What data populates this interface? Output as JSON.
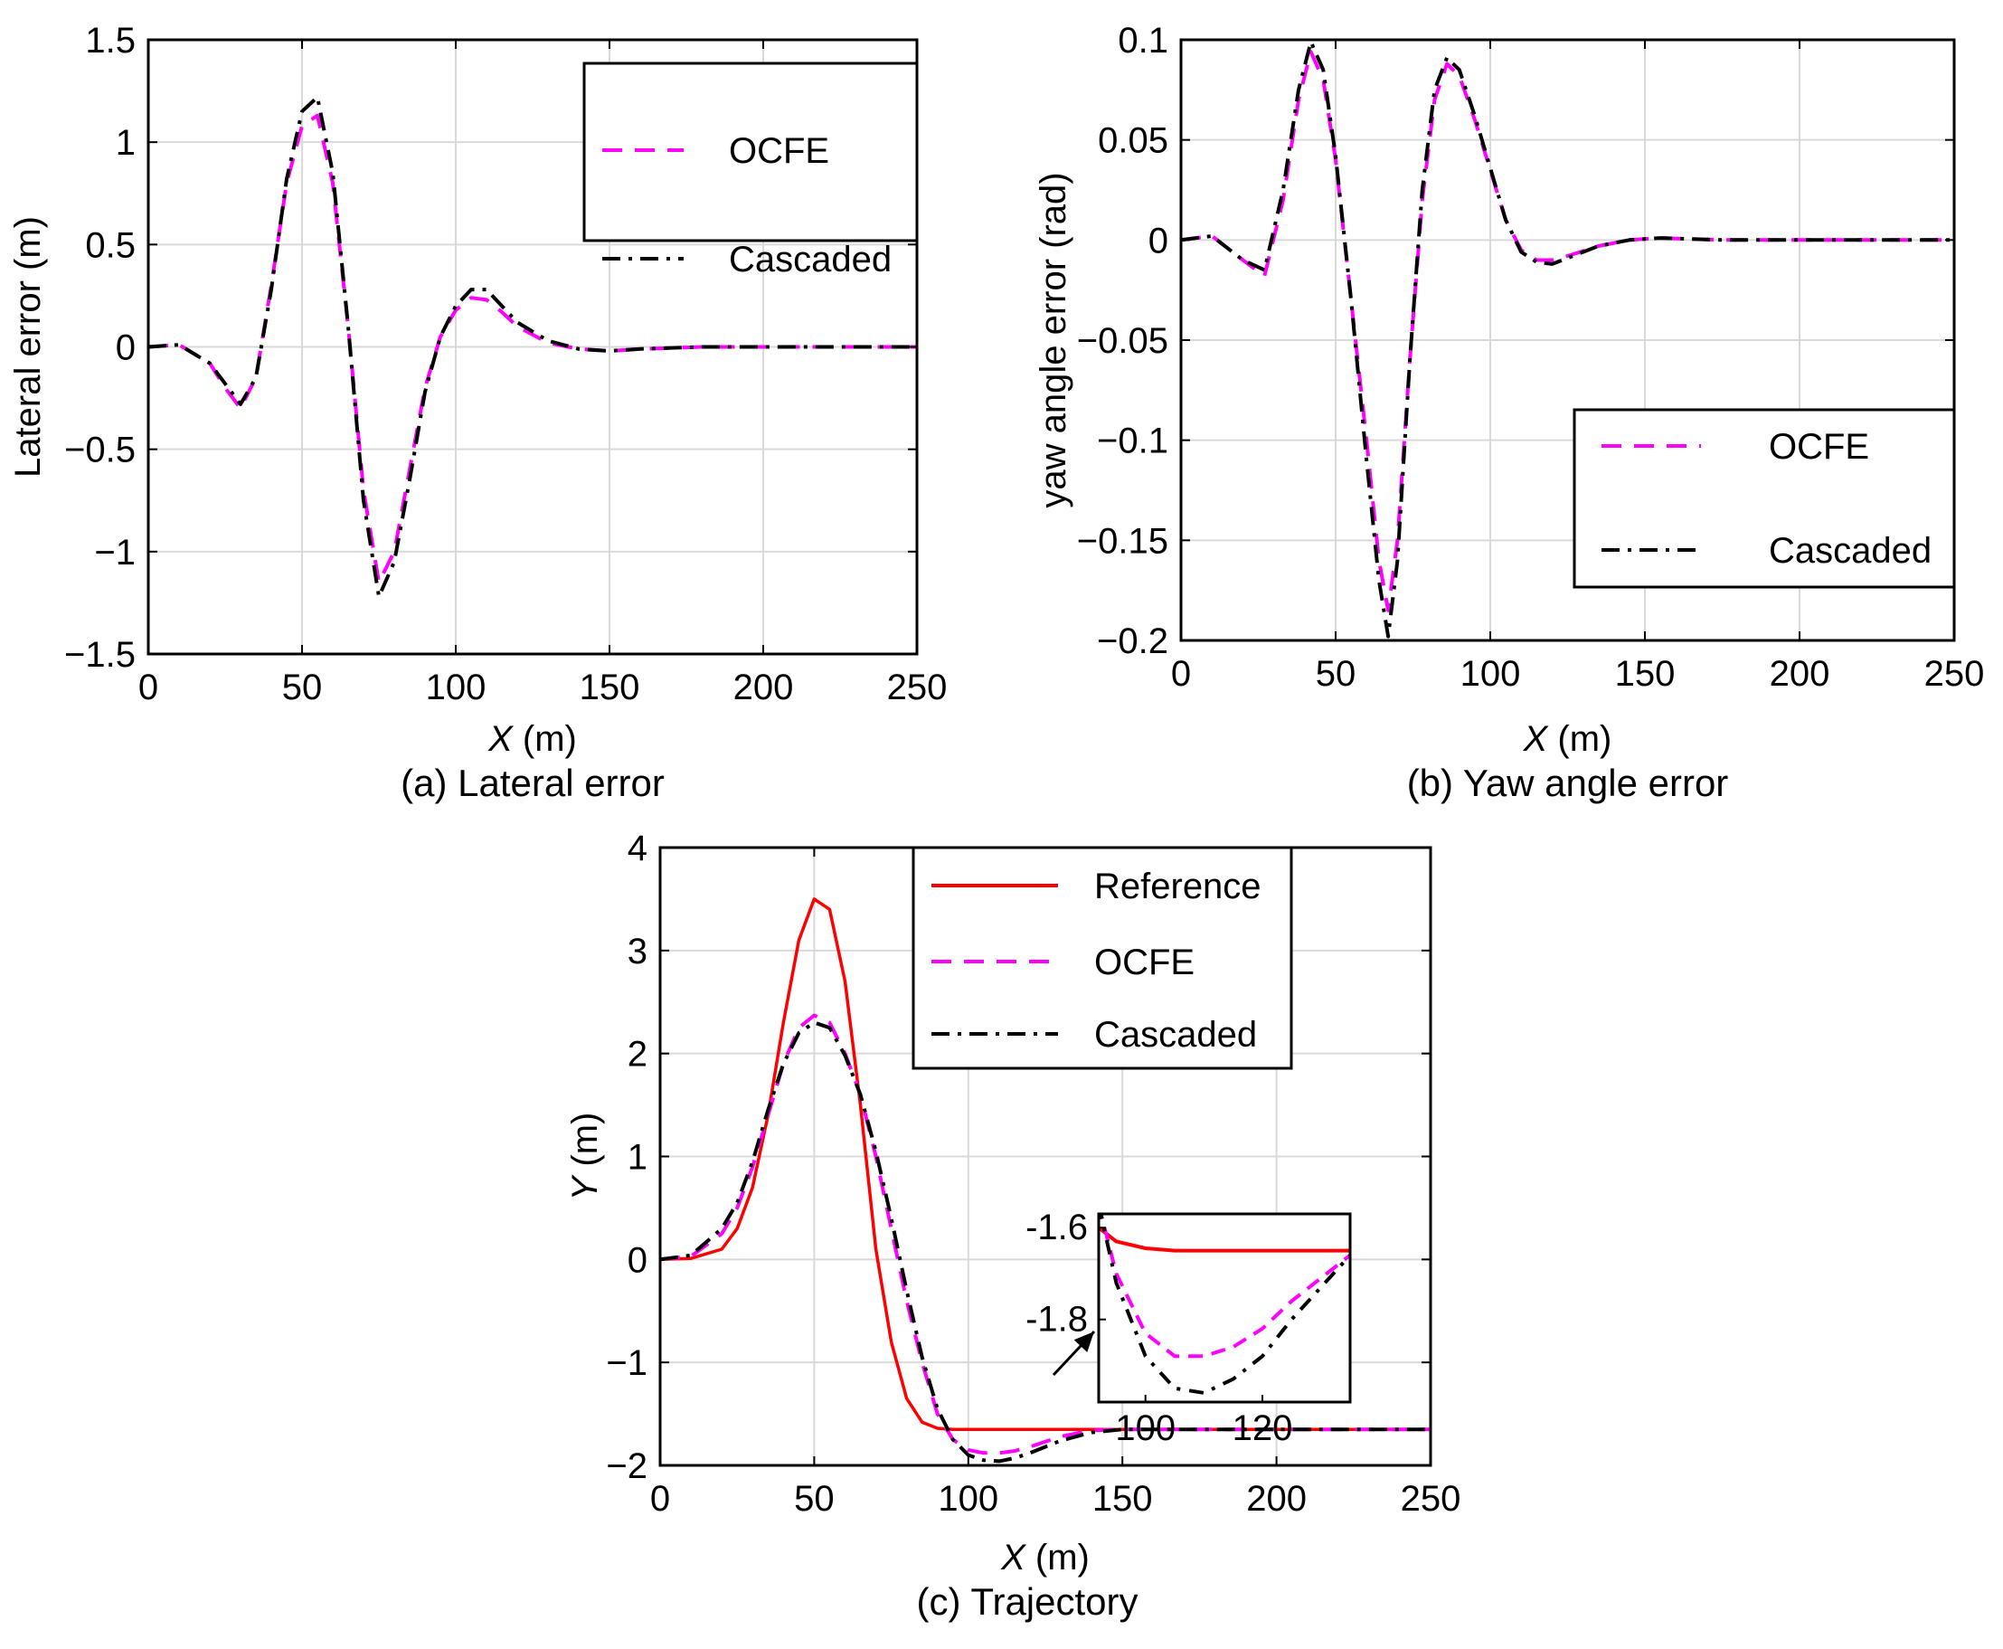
{
  "chart_data": [
    {
      "id": "a",
      "type": "line",
      "caption": "(a) Lateral error",
      "xlabel_var": "X",
      "xlabel_unit": " (m)",
      "ylabel": "Lateral error (m)",
      "xlim": [
        0,
        250
      ],
      "ylim": [
        -1.5,
        1.5
      ],
      "xticks": [
        0,
        50,
        100,
        150,
        200,
        250
      ],
      "xtick_labels": [
        "0",
        "50",
        "100",
        "150",
        "200",
        "250"
      ],
      "yticks": [
        -1.5,
        -1,
        -0.5,
        0,
        0.5,
        1,
        1.5
      ],
      "ytick_labels": [
        "−1.5",
        "−1",
        "−0.5",
        "0",
        "0.5",
        "1",
        "1.5"
      ],
      "grid": true,
      "legend_position": "top-right",
      "series": [
        {
          "name": "OCFE",
          "color": "#ff00ff",
          "dash": "dashed",
          "x": [
            0,
            10,
            20,
            25,
            30,
            35,
            40,
            45,
            50,
            55,
            60,
            65,
            70,
            75,
            80,
            85,
            90,
            95,
            100,
            105,
            110,
            115,
            120,
            130,
            140,
            150,
            160,
            180,
            200,
            225,
            250
          ],
          "y": [
            0,
            0.01,
            -0.08,
            -0.2,
            -0.3,
            -0.15,
            0.3,
            0.8,
            1.08,
            1.13,
            0.8,
            0.1,
            -0.7,
            -1.15,
            -1.0,
            -0.6,
            -0.2,
            0.05,
            0.18,
            0.24,
            0.23,
            0.17,
            0.1,
            0.02,
            -0.01,
            -0.02,
            -0.01,
            0,
            0,
            0,
            0
          ]
        },
        {
          "name": "Cascaded",
          "color": "#000000",
          "dash": "dashdot",
          "x": [
            0,
            10,
            20,
            25,
            30,
            35,
            40,
            45,
            50,
            55,
            60,
            65,
            70,
            75,
            80,
            85,
            90,
            95,
            100,
            105,
            110,
            115,
            120,
            130,
            140,
            150,
            160,
            180,
            200,
            225,
            250
          ],
          "y": [
            0,
            0.01,
            -0.08,
            -0.18,
            -0.28,
            -0.15,
            0.28,
            0.82,
            1.15,
            1.22,
            0.85,
            0.1,
            -0.75,
            -1.22,
            -1.05,
            -0.65,
            -0.22,
            0.05,
            0.2,
            0.28,
            0.28,
            0.2,
            0.12,
            0.03,
            -0.01,
            -0.02,
            -0.01,
            0,
            0,
            0,
            0
          ]
        }
      ]
    },
    {
      "id": "b",
      "type": "line",
      "caption": "(b) Yaw angle error",
      "xlabel_var": "X",
      "xlabel_unit": " (m)",
      "ylabel": "yaw angle error (rad)",
      "xlim": [
        0,
        250
      ],
      "ylim": [
        -0.2,
        0.1
      ],
      "xticks": [
        0,
        50,
        100,
        150,
        200,
        250
      ],
      "xtick_labels": [
        "0",
        "50",
        "100",
        "150",
        "200",
        "250"
      ],
      "yticks": [
        -0.2,
        -0.15,
        -0.1,
        -0.05,
        0,
        0.05,
        0.1
      ],
      "ytick_labels": [
        "−0.2",
        "−0.15",
        "−0.1",
        "−0.05",
        "0",
        "0.05",
        "0.1"
      ],
      "grid": true,
      "legend_position": "middle-right",
      "series": [
        {
          "name": "OCFE",
          "color": "#ff00ff",
          "dash": "dashed",
          "x": [
            0,
            10,
            20,
            27,
            33,
            38,
            42,
            46,
            50,
            55,
            60,
            64,
            67,
            70,
            74,
            78,
            82,
            86,
            90,
            95,
            100,
            105,
            110,
            115,
            120,
            125,
            135,
            145,
            155,
            175,
            200,
            250
          ],
          "y": [
            0,
            0.002,
            -0.01,
            -0.018,
            0.02,
            0.07,
            0.094,
            0.08,
            0.04,
            -0.03,
            -0.1,
            -0.16,
            -0.185,
            -0.15,
            -0.06,
            0.02,
            0.07,
            0.088,
            0.082,
            0.06,
            0.035,
            0.01,
            -0.005,
            -0.01,
            -0.01,
            -0.008,
            -0.003,
            0,
            0.001,
            0,
            0,
            0
          ]
        },
        {
          "name": "Cascaded",
          "color": "#000000",
          "dash": "dashdot",
          "x": [
            0,
            10,
            20,
            27,
            33,
            38,
            42,
            46,
            50,
            55,
            60,
            64,
            67,
            70,
            74,
            78,
            82,
            86,
            90,
            95,
            100,
            105,
            110,
            115,
            120,
            125,
            135,
            145,
            155,
            175,
            200,
            250
          ],
          "y": [
            0,
            0.002,
            -0.01,
            -0.015,
            0.025,
            0.075,
            0.099,
            0.085,
            0.042,
            -0.03,
            -0.11,
            -0.17,
            -0.198,
            -0.16,
            -0.06,
            0.025,
            0.075,
            0.091,
            0.085,
            0.062,
            0.036,
            0.01,
            -0.006,
            -0.011,
            -0.012,
            -0.009,
            -0.003,
            0,
            0.001,
            0,
            0,
            0
          ]
        }
      ]
    },
    {
      "id": "c",
      "type": "line",
      "caption": "(c) Trajectory",
      "xlabel_var": "X",
      "xlabel_unit": " (m)",
      "ylabel_var": "Y",
      "ylabel_unit": " (m)",
      "xlim": [
        0,
        250
      ],
      "ylim": [
        -2,
        4
      ],
      "xticks": [
        0,
        50,
        100,
        150,
        200,
        250
      ],
      "xtick_labels": [
        "0",
        "50",
        "100",
        "150",
        "200",
        "250"
      ],
      "yticks": [
        -2,
        -1,
        0,
        1,
        2,
        3,
        4
      ],
      "ytick_labels": [
        "−2",
        "−1",
        "0",
        "1",
        "2",
        "3",
        "4"
      ],
      "grid": true,
      "legend_position": "top-right",
      "series": [
        {
          "name": "Reference",
          "color": "#ff0000",
          "dash": "solid",
          "x": [
            0,
            10,
            20,
            25,
            30,
            35,
            40,
            45,
            50,
            55,
            60,
            65,
            70,
            75,
            80,
            85,
            90,
            95,
            100,
            110,
            120,
            150,
            200,
            250
          ],
          "y": [
            0,
            0.01,
            0.1,
            0.3,
            0.7,
            1.4,
            2.3,
            3.1,
            3.5,
            3.4,
            2.7,
            1.5,
            0.1,
            -0.8,
            -1.35,
            -1.58,
            -1.64,
            -1.65,
            -1.65,
            -1.65,
            -1.65,
            -1.65,
            -1.65,
            -1.65
          ]
        },
        {
          "name": "OCFE",
          "color": "#ff00ff",
          "dash": "dashed",
          "x": [
            0,
            10,
            20,
            25,
            30,
            35,
            40,
            45,
            50,
            55,
            60,
            65,
            70,
            75,
            80,
            85,
            90,
            95,
            100,
            105,
            110,
            115,
            120,
            130,
            140,
            150,
            200,
            250
          ],
          "y": [
            0,
            0.03,
            0.25,
            0.5,
            0.9,
            1.4,
            1.9,
            2.25,
            2.37,
            2.3,
            2.0,
            1.6,
            1.0,
            0.3,
            -0.4,
            -1.0,
            -1.5,
            -1.75,
            -1.85,
            -1.88,
            -1.88,
            -1.86,
            -1.82,
            -1.72,
            -1.66,
            -1.65,
            -1.65,
            -1.65
          ]
        },
        {
          "name": "Cascaded",
          "color": "#000000",
          "dash": "dashdot",
          "x": [
            0,
            10,
            20,
            25,
            30,
            35,
            40,
            45,
            50,
            55,
            60,
            65,
            70,
            75,
            80,
            85,
            90,
            95,
            100,
            105,
            110,
            115,
            120,
            130,
            140,
            150,
            200,
            250
          ],
          "y": [
            0,
            0.04,
            0.3,
            0.55,
            0.95,
            1.45,
            1.9,
            2.2,
            2.3,
            2.25,
            1.98,
            1.6,
            1.05,
            0.4,
            -0.3,
            -0.95,
            -1.45,
            -1.75,
            -1.9,
            -1.95,
            -1.96,
            -1.93,
            -1.88,
            -1.76,
            -1.68,
            -1.65,
            -1.65,
            -1.65
          ]
        }
      ],
      "inset": {
        "xlim": [
          92,
          135
        ],
        "ylim": [
          -1.98,
          -1.57
        ],
        "xticks": [
          100,
          120
        ],
        "xtick_labels": [
          "100",
          "120"
        ],
        "yticks": [
          -1.6,
          -1.8
        ],
        "ytick_labels": [
          "-1.6",
          "-1.8"
        ],
        "series": [
          {
            "name": "Reference",
            "color": "#ff0000",
            "dash": "solid",
            "x": [
              92,
              95,
              100,
              105,
              110,
              120,
              135
            ],
            "y": [
              -1.6,
              -1.63,
              -1.645,
              -1.65,
              -1.65,
              -1.65,
              -1.65
            ]
          },
          {
            "name": "OCFE",
            "color": "#ff00ff",
            "dash": "dashed",
            "x": [
              92,
              95,
              100,
              105,
              110,
              115,
              120,
              125,
              130,
              135
            ],
            "y": [
              -1.55,
              -1.7,
              -1.83,
              -1.88,
              -1.88,
              -1.86,
              -1.82,
              -1.76,
              -1.71,
              -1.66
            ]
          },
          {
            "name": "Cascaded",
            "color": "#000000",
            "dash": "dashdot",
            "x": [
              92,
              95,
              100,
              105,
              110,
              115,
              120,
              125,
              130,
              135
            ],
            "y": [
              -1.55,
              -1.72,
              -1.88,
              -1.95,
              -1.96,
              -1.93,
              -1.88,
              -1.8,
              -1.73,
              -1.66
            ]
          }
        ]
      }
    }
  ]
}
